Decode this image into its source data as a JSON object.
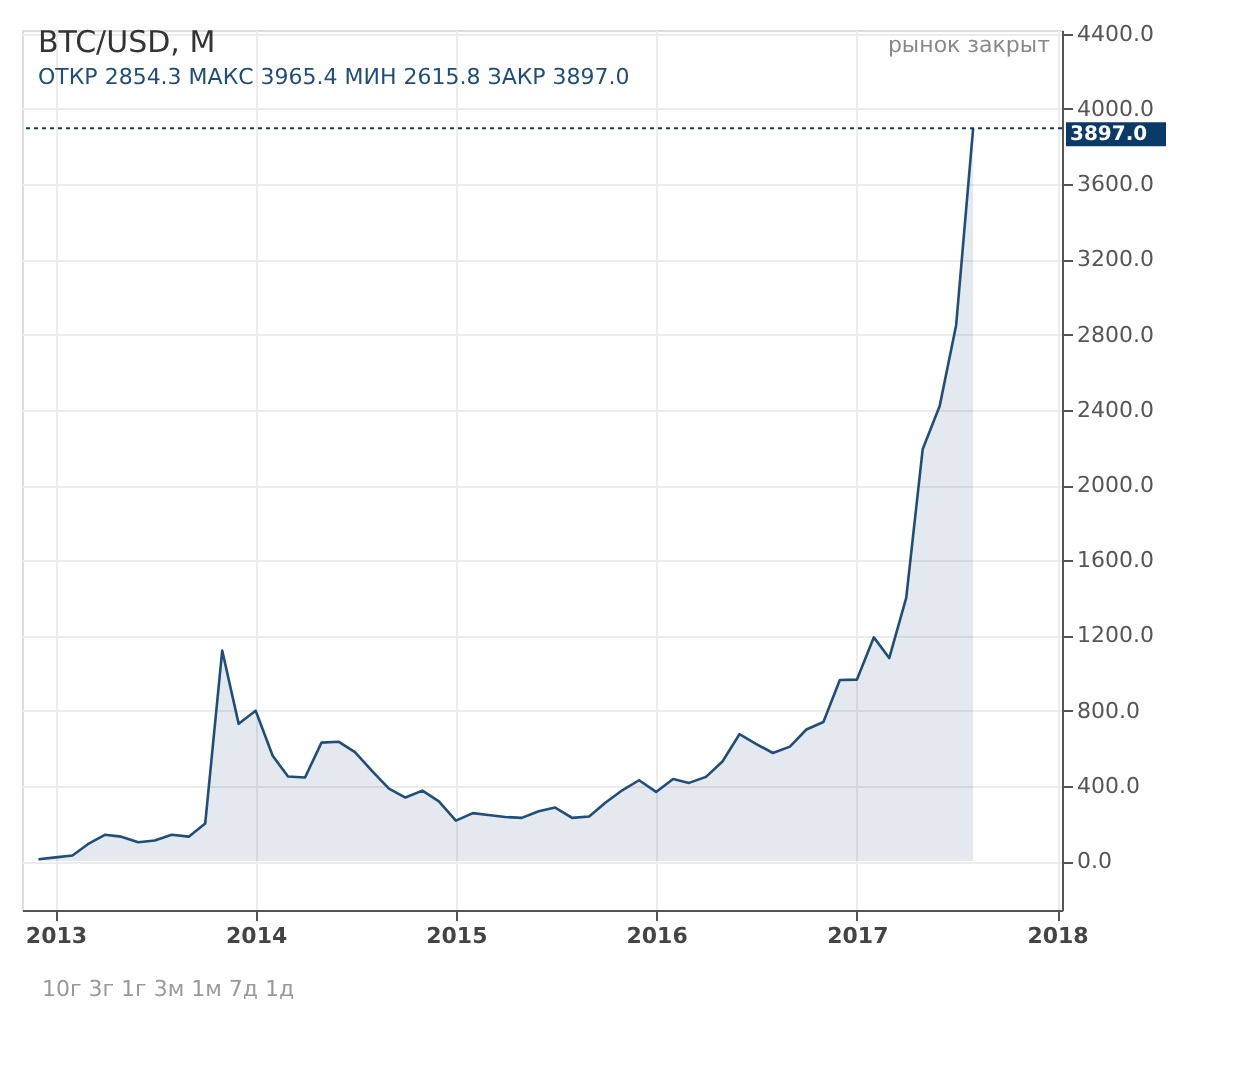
{
  "chart_data": {
    "type": "area",
    "title": "BTC/USD, M",
    "annotations": [
      "ОТКР 2854.3 МАКС 3965.4 МИН 2615.8 ЗАКР 3897.0",
      "рынок закрыт",
      "10г   3г   1г   3м   1м   7д   1д"
    ],
    "x": [
      "2012-12",
      "2013-01",
      "2013-02",
      "2013-03",
      "2013-04",
      "2013-05",
      "2013-06",
      "2013-07",
      "2013-08",
      "2013-09",
      "2013-10",
      "2013-11",
      "2013-12",
      "2014-01",
      "2014-02",
      "2014-03",
      "2014-04",
      "2014-05",
      "2014-06",
      "2014-07",
      "2014-08",
      "2014-09",
      "2014-10",
      "2014-11",
      "2014-12",
      "2015-01",
      "2015-02",
      "2015-03",
      "2015-04",
      "2015-05",
      "2015-06",
      "2015-07",
      "2015-08",
      "2015-09",
      "2015-10",
      "2015-11",
      "2015-12",
      "2016-01",
      "2016-02",
      "2016-03",
      "2016-04",
      "2016-05",
      "2016-06",
      "2016-07",
      "2016-08",
      "2016-09",
      "2016-10",
      "2016-11",
      "2016-12",
      "2017-01",
      "2017-02",
      "2017-03",
      "2017-04",
      "2017-05",
      "2017-06",
      "2017-07",
      "2017-08"
    ],
    "series": [
      {
        "color": "#1f4e79",
        "values": [
          10,
          20,
          30,
          90,
          140,
          130,
          100,
          110,
          140,
          130,
          200,
          1120,
          730,
          800,
          560,
          450,
          445,
          630,
          635,
          580,
          480,
          385,
          338,
          375,
          318,
          215,
          255,
          245,
          235,
          230,
          265,
          285,
          230,
          237,
          312,
          378,
          430,
          368,
          437,
          416,
          448,
          530,
          675,
          624,
          575,
          609,
          700,
          740,
          963,
          965,
          1190,
          1080,
          1400,
          2190,
          2420,
          2850,
          3897
        ]
      }
    ],
    "xlim": [
      "2012-11-01",
      "2018-01-10"
    ],
    "xticks": [
      "2013",
      "2014",
      "2015",
      "2016",
      "2017",
      "2018"
    ],
    "ylim": [
      -260,
      4420
    ],
    "yticks": [
      {
        "value": 0,
        "label": "0.0"
      },
      {
        "value": 400,
        "label": "400.0"
      },
      {
        "value": 800,
        "label": "800.0"
      },
      {
        "value": 1200,
        "label": "1200.0"
      },
      {
        "value": 1600,
        "label": "1600.0"
      },
      {
        "value": 2000,
        "label": "2000.0"
      },
      {
        "value": 2400,
        "label": "2400.0"
      },
      {
        "value": 2800,
        "label": "2800.0"
      },
      {
        "value": 3200,
        "label": "3200.0"
      },
      {
        "value": 3600,
        "label": "3600.0"
      },
      {
        "value": 4000,
        "label": "4000.0"
      },
      {
        "value": 4400,
        "label": "4400.0"
      }
    ],
    "ref_lines": [
      {
        "axis": "y",
        "value": 3897,
        "label": "3897.0",
        "color": "#0b3a66",
        "line_style": "dotted"
      }
    ],
    "grid": true
  }
}
